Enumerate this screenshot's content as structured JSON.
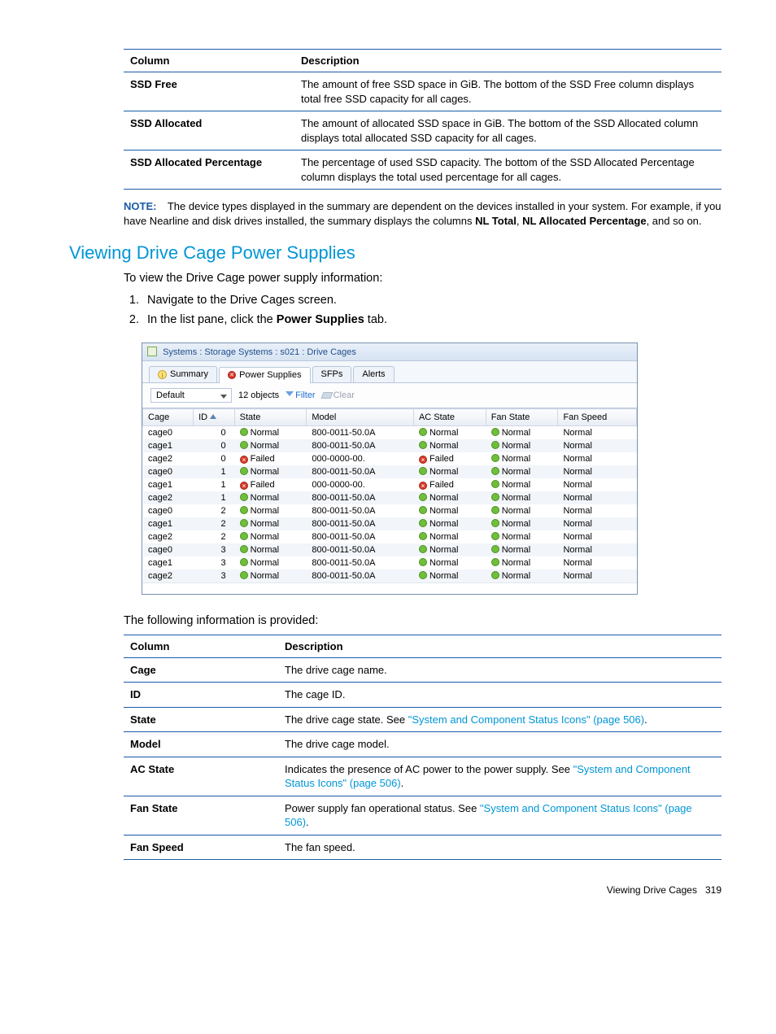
{
  "table1": {
    "headers": [
      "Column",
      "Description"
    ],
    "rows": [
      {
        "col": "SSD Free",
        "desc": "The amount of free SSD space in GiB. The bottom of the SSD Free column displays total free SSD capacity for all cages."
      },
      {
        "col": "SSD Allocated",
        "desc": "The amount of allocated SSD space in GiB. The bottom of the SSD Allocated column displays total allocated SSD capacity for all cages."
      },
      {
        "col": "SSD Allocated Percentage",
        "desc": "The percentage of used SSD capacity. The bottom of the SSD Allocated Percentage column displays the total used percentage for all cages."
      }
    ]
  },
  "note": {
    "label": "NOTE:",
    "text_pre": "The device types displayed in the summary are dependent on the devices installed in your system. For example, if you have Nearline and disk drives installed, the summary displays the columns ",
    "bold1": "NL Total",
    "comma": ", ",
    "bold2": "NL Allocated Percentage",
    "text_post": ", and so on."
  },
  "section_title": "Viewing Drive Cage Power Supplies",
  "intro": "To view the Drive Cage power supply information:",
  "steps": {
    "s1": "Navigate to the Drive Cages screen.",
    "s2_pre": "In the list pane, click the ",
    "s2_bold": "Power Supplies",
    "s2_post": " tab."
  },
  "app": {
    "title": "Systems : Storage Systems : s021 : Drive Cages",
    "tabs": {
      "summary": "Summary",
      "power": "Power Supplies",
      "sfps": "SFPs",
      "alerts": "Alerts"
    },
    "toolbar": {
      "default": "Default",
      "count": "12 objects",
      "filter": "Filter",
      "clear": "Clear"
    },
    "headers": {
      "cage": "Cage",
      "id": "ID",
      "state": "State",
      "model": "Model",
      "ac": "AC State",
      "fan": "Fan State",
      "speed": "Fan Speed"
    },
    "status": {
      "normal": "Normal",
      "failed": "Failed"
    },
    "model_n": "800-0011-50.0A",
    "model_f": "000-0000-00.",
    "rows": [
      {
        "cage": "cage0",
        "id": "0",
        "state": "normal",
        "model": "n",
        "ac": "normal",
        "fan": "normal",
        "speed": "Normal"
      },
      {
        "cage": "cage1",
        "id": "0",
        "state": "normal",
        "model": "n",
        "ac": "normal",
        "fan": "normal",
        "speed": "Normal"
      },
      {
        "cage": "cage2",
        "id": "0",
        "state": "failed",
        "model": "f",
        "ac": "failed",
        "fan": "normal",
        "speed": "Normal"
      },
      {
        "cage": "cage0",
        "id": "1",
        "state": "normal",
        "model": "n",
        "ac": "normal",
        "fan": "normal",
        "speed": "Normal"
      },
      {
        "cage": "cage1",
        "id": "1",
        "state": "failed",
        "model": "f",
        "ac": "failed",
        "fan": "normal",
        "speed": "Normal"
      },
      {
        "cage": "cage2",
        "id": "1",
        "state": "normal",
        "model": "n",
        "ac": "normal",
        "fan": "normal",
        "speed": "Normal"
      },
      {
        "cage": "cage0",
        "id": "2",
        "state": "normal",
        "model": "n",
        "ac": "normal",
        "fan": "normal",
        "speed": "Normal"
      },
      {
        "cage": "cage1",
        "id": "2",
        "state": "normal",
        "model": "n",
        "ac": "normal",
        "fan": "normal",
        "speed": "Normal"
      },
      {
        "cage": "cage2",
        "id": "2",
        "state": "normal",
        "model": "n",
        "ac": "normal",
        "fan": "normal",
        "speed": "Normal"
      },
      {
        "cage": "cage0",
        "id": "3",
        "state": "normal",
        "model": "n",
        "ac": "normal",
        "fan": "normal",
        "speed": "Normal"
      },
      {
        "cage": "cage1",
        "id": "3",
        "state": "normal",
        "model": "n",
        "ac": "normal",
        "fan": "normal",
        "speed": "Normal"
      },
      {
        "cage": "cage2",
        "id": "3",
        "state": "normal",
        "model": "n",
        "ac": "normal",
        "fan": "normal",
        "speed": "Normal"
      }
    ]
  },
  "post_text": "The following information is provided:",
  "table2": {
    "headers": [
      "Column",
      "Description"
    ],
    "rows": {
      "cage": {
        "col": "Cage",
        "desc": "The drive cage name."
      },
      "id": {
        "col": "ID",
        "desc": "The cage ID."
      },
      "state": {
        "col": "State",
        "pre": "The drive cage state. See ",
        "link": "\"System and Component Status Icons\" (page 506)",
        "post": "."
      },
      "model": {
        "col": "Model",
        "desc": "The drive cage model."
      },
      "ac": {
        "col": "AC State",
        "pre": "Indicates the presence of AC power to the power supply. See ",
        "link": "\"System and Component Status Icons\" (page 506)",
        "post": "."
      },
      "fan": {
        "col": "Fan State",
        "pre": "Power supply fan operational status. See ",
        "link": "\"System and Component Status Icons\" (page 506)",
        "post": "."
      },
      "speed": {
        "col": "Fan Speed",
        "desc": "The fan speed."
      }
    }
  },
  "footer": {
    "text": "Viewing Drive Cages",
    "page": "319"
  },
  "colors": {
    "heading": "#0096d6",
    "table_border": "#1a5ba8",
    "link": "#0096d6",
    "green": "#6fbf3a",
    "red": "#d93b2a"
  }
}
